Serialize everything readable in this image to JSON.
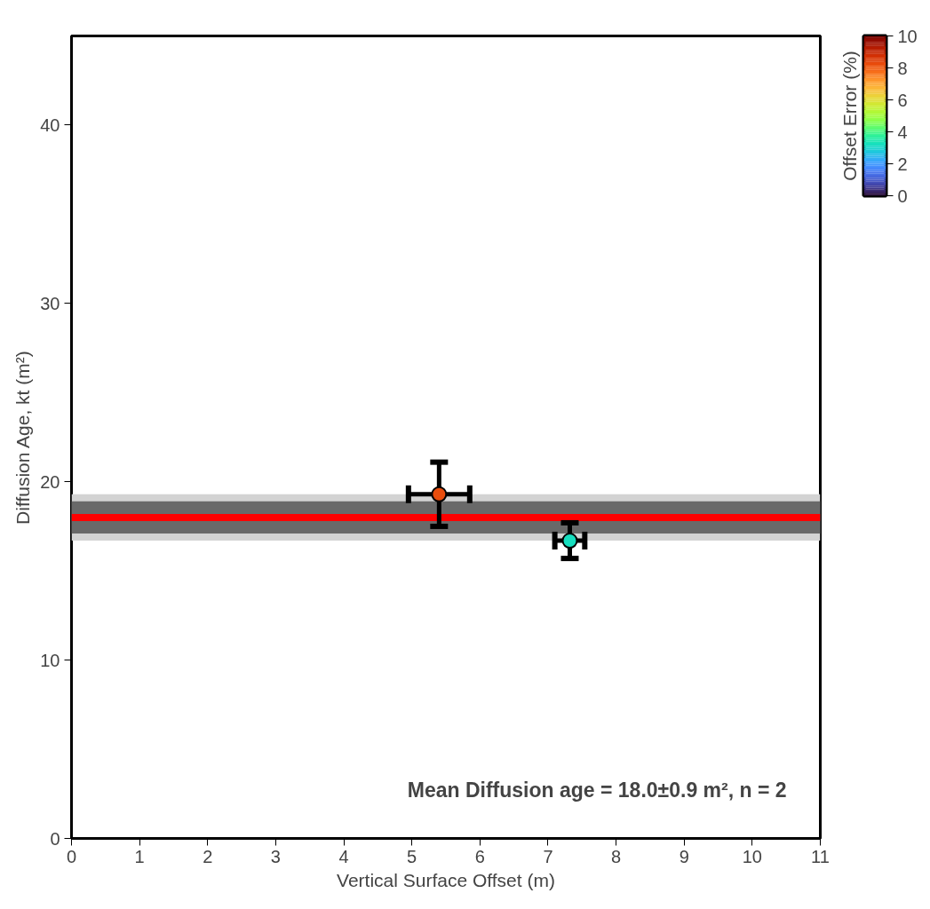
{
  "chart_data": {
    "type": "scatter",
    "xlabel": "Vertical Surface Offset (m)",
    "ylabel": "Diffusion Age, kt (m²)",
    "clabel": "Offset Error (%)",
    "x": [
      5.4,
      7.32
    ],
    "values": [
      19.3,
      16.7
    ],
    "cvalues": [
      8.2,
      3.2
    ],
    "errors": [
      1.8,
      1.0
    ],
    "xerrors": [
      0.45,
      0.22
    ],
    "clim": [
      0,
      10
    ],
    "cticks": [
      0,
      2,
      4,
      6,
      8,
      10
    ],
    "xlim": [
      0,
      11
    ],
    "xticks": [
      0,
      1,
      2,
      3,
      4,
      5,
      6,
      7,
      8,
      9,
      10,
      11
    ],
    "ylim": [
      0,
      45
    ],
    "yticks": [
      0,
      10,
      20,
      30,
      40
    ],
    "bands": [
      {
        "axis": "y",
        "from": 16.7,
        "to": 19.3,
        "color": "#d3d3d3"
      },
      {
        "axis": "y",
        "from": 17.1,
        "to": 18.9,
        "color": "#696969"
      }
    ],
    "ref_lines": [
      {
        "axis": "y",
        "value": 18.0,
        "color": "#ff0000"
      }
    ],
    "annotations": [
      "Mean Diffusion age = 18.0±0.9 m², n = 2"
    ],
    "marker": "circle",
    "grid": false
  }
}
